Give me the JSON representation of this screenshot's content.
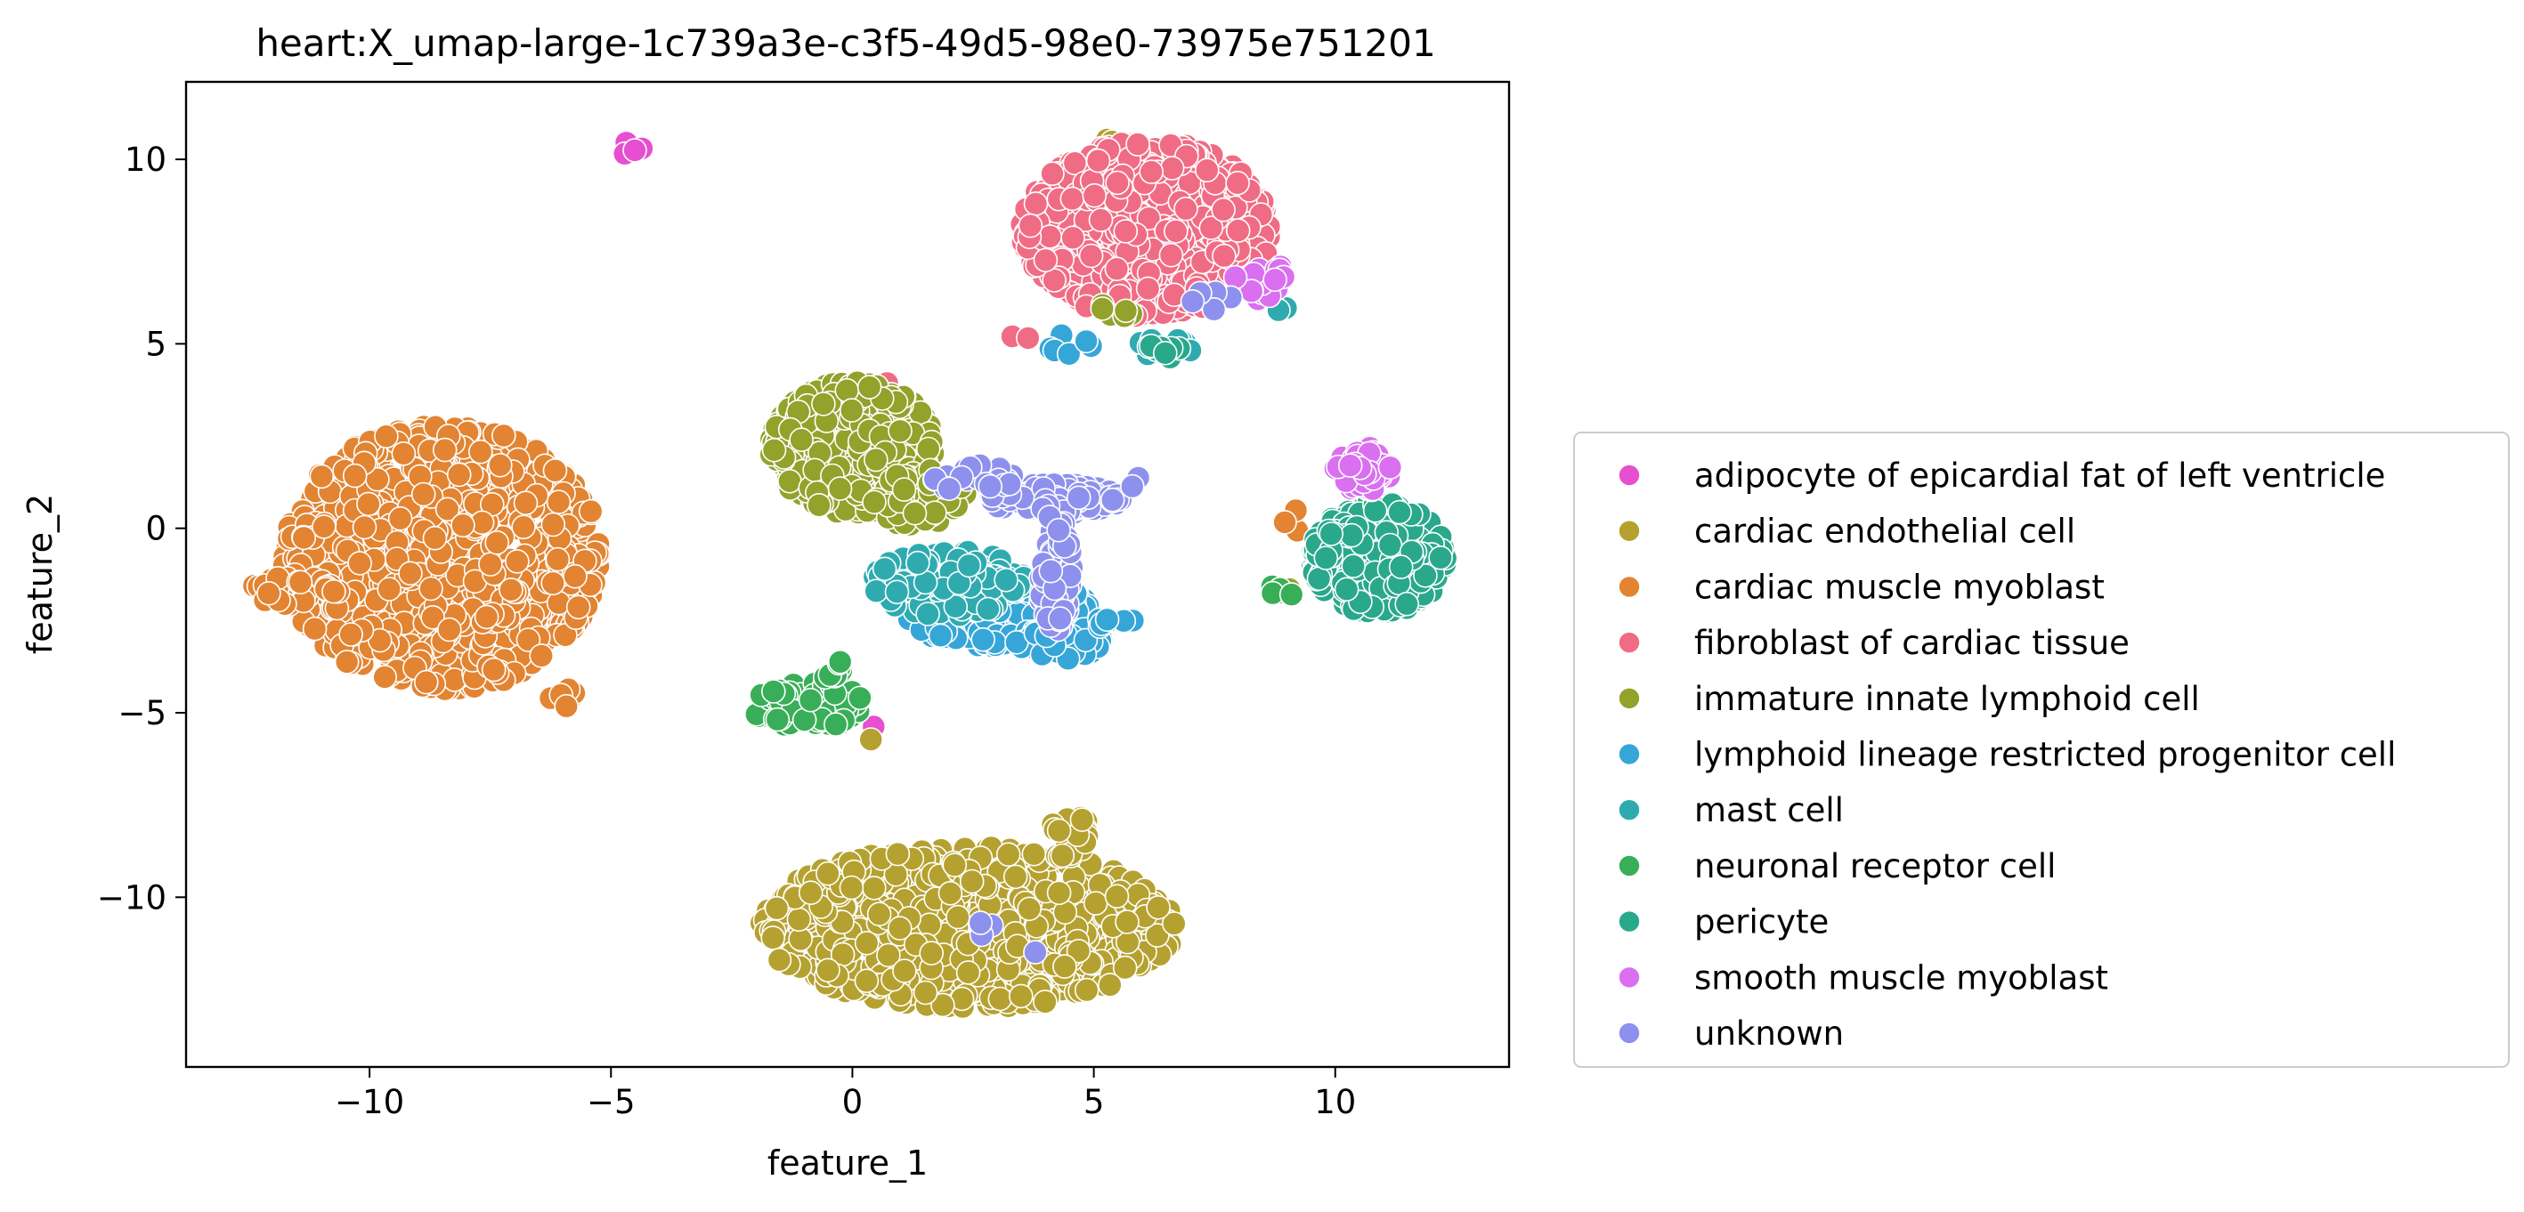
{
  "chart_data": {
    "type": "scatter",
    "title": "heart:X_umap-large-1c739a3e-c3f5-49d5-98e0-73975e751201",
    "xlabel": "feature_1",
    "ylabel": "feature_2",
    "xlim": [
      -13.8,
      13.6
    ],
    "ylim": [
      -14.6,
      12.1
    ],
    "x_ticks": [
      -10,
      -5,
      0,
      5,
      10
    ],
    "y_ticks": [
      -10,
      -5,
      0,
      5,
      10
    ],
    "x_tick_labels": [
      "−10",
      "−5",
      "0",
      "5",
      "10"
    ],
    "y_tick_labels": [
      "−10",
      "−5",
      "0",
      "5",
      "10"
    ],
    "grid": false,
    "legend_position": "right, outside plot area",
    "marker": "circle with white edge",
    "series": [
      {
        "name": "adipocyte of epicardial fat of left ventricle",
        "color": "#e64fd0",
        "clusters": [
          {
            "cx": -4.6,
            "cy": 10.3,
            "rx": 0.3,
            "ry": 0.2,
            "n": 4
          },
          {
            "cx": 0.4,
            "cy": -5.3,
            "rx": 0.1,
            "ry": 0.1,
            "n": 1
          }
        ]
      },
      {
        "name": "cardiac endothelial cell",
        "color": "#b5a130",
        "clusters": [
          {
            "cx": 2.4,
            "cy": -10.8,
            "rx": 4.3,
            "ry": 2.2,
            "n": 780
          },
          {
            "cx": 4.5,
            "cy": -8.3,
            "rx": 0.4,
            "ry": 0.8,
            "n": 20
          },
          {
            "cx": 5.2,
            "cy": 10.5,
            "rx": 0.2,
            "ry": 0.1,
            "n": 2
          },
          {
            "cx": 0.3,
            "cy": -5.7,
            "rx": 0.1,
            "ry": 0.1,
            "n": 1
          }
        ]
      },
      {
        "name": "cardiac muscle myoblast",
        "color": "#e28432",
        "clusters": [
          {
            "cx": -8.5,
            "cy": -0.8,
            "rx": 3.3,
            "ry": 3.6,
            "n": 950
          },
          {
            "cx": -11.6,
            "cy": -1.7,
            "rx": 0.9,
            "ry": 0.4,
            "n": 30
          },
          {
            "cx": -6.0,
            "cy": -4.6,
            "rx": 0.3,
            "ry": 0.3,
            "n": 6
          },
          {
            "cx": 9.1,
            "cy": 0.2,
            "rx": 0.3,
            "ry": 0.3,
            "n": 4
          }
        ]
      },
      {
        "name": "fibroblast of cardiac tissue",
        "color": "#f06c84",
        "clusters": [
          {
            "cx": 6.1,
            "cy": 8.1,
            "rx": 2.6,
            "ry": 2.4,
            "n": 760
          },
          {
            "cx": 3.5,
            "cy": 5.2,
            "rx": 0.2,
            "ry": 0.1,
            "n": 2
          },
          {
            "cx": 0.8,
            "cy": 3.9,
            "rx": 0.1,
            "ry": 0.1,
            "n": 1
          }
        ]
      },
      {
        "name": "immature innate lymphoid cell",
        "color": "#92a22b",
        "clusters": [
          {
            "cx": 0.0,
            "cy": 2.2,
            "rx": 1.7,
            "ry": 1.8,
            "n": 520
          },
          {
            "cx": 1.4,
            "cy": 0.8,
            "rx": 1.0,
            "ry": 0.8,
            "n": 60
          },
          {
            "cx": 8.9,
            "cy": -1.8,
            "rx": 0.3,
            "ry": 0.2,
            "n": 5
          },
          {
            "cx": 5.4,
            "cy": 5.8,
            "rx": 0.5,
            "ry": 0.3,
            "n": 6
          }
        ]
      },
      {
        "name": "lymphoid lineage restricted progenitor cell",
        "color": "#36a6d8",
        "clusters": [
          {
            "cx": 3.0,
            "cy": -2.2,
            "rx": 2.0,
            "ry": 1.0,
            "n": 230
          },
          {
            "cx": 4.3,
            "cy": -3.1,
            "rx": 0.9,
            "ry": 0.5,
            "n": 70
          },
          {
            "cx": 5.4,
            "cy": -2.6,
            "rx": 0.5,
            "ry": 0.2,
            "n": 8
          },
          {
            "cx": 4.5,
            "cy": 5.0,
            "rx": 0.5,
            "ry": 0.3,
            "n": 8
          }
        ]
      },
      {
        "name": "mast cell",
        "color": "#2fabb0",
        "clusters": [
          {
            "cx": 2.0,
            "cy": -1.5,
            "rx": 1.6,
            "ry": 0.9,
            "n": 110
          },
          {
            "cx": 6.5,
            "cy": 4.9,
            "rx": 0.6,
            "ry": 0.3,
            "n": 14
          },
          {
            "cx": 8.9,
            "cy": 5.9,
            "rx": 0.2,
            "ry": 0.1,
            "n": 3
          }
        ]
      },
      {
        "name": "neuronal receptor cell",
        "color": "#39ae58",
        "clusters": [
          {
            "cx": -0.9,
            "cy": -4.8,
            "rx": 1.3,
            "ry": 0.6,
            "n": 80
          },
          {
            "cx": -0.4,
            "cy": -3.8,
            "rx": 0.3,
            "ry": 0.3,
            "n": 8
          },
          {
            "cx": 8.9,
            "cy": -1.7,
            "rx": 0.3,
            "ry": 0.2,
            "n": 4
          }
        ]
      },
      {
        "name": "pericyte",
        "color": "#2aa88c",
        "clusters": [
          {
            "cx": 10.9,
            "cy": -0.8,
            "rx": 1.4,
            "ry": 1.5,
            "n": 500
          },
          {
            "cx": 6.4,
            "cy": 4.8,
            "rx": 0.4,
            "ry": 0.2,
            "n": 6
          }
        ]
      },
      {
        "name": "smooth muscle myoblast",
        "color": "#da6ff0",
        "clusters": [
          {
            "cx": 10.6,
            "cy": 1.6,
            "rx": 0.6,
            "ry": 0.6,
            "n": 60
          },
          {
            "cx": 8.5,
            "cy": 6.7,
            "rx": 0.6,
            "ry": 0.5,
            "n": 25
          }
        ]
      },
      {
        "name": "unknown",
        "color": "#8d91ed",
        "clusters": [
          {
            "cx": 4.2,
            "cy": 0.8,
            "rx": 1.4,
            "ry": 0.4,
            "n": 130
          },
          {
            "cx": 4.2,
            "cy": -1.2,
            "rx": 0.35,
            "ry": 1.6,
            "n": 70
          },
          {
            "cx": 2.5,
            "cy": 1.4,
            "rx": 0.9,
            "ry": 0.4,
            "n": 25
          },
          {
            "cx": 2.8,
            "cy": -10.8,
            "rx": 0.2,
            "ry": 0.3,
            "n": 4
          },
          {
            "cx": 3.8,
            "cy": -11.5,
            "rx": 0.1,
            "ry": 0.1,
            "n": 1
          },
          {
            "cx": 7.5,
            "cy": 6.2,
            "rx": 0.6,
            "ry": 0.3,
            "n": 6
          },
          {
            "cx": 5.9,
            "cy": 1.3,
            "rx": 0.2,
            "ry": 0.2,
            "n": 2
          }
        ]
      }
    ]
  }
}
